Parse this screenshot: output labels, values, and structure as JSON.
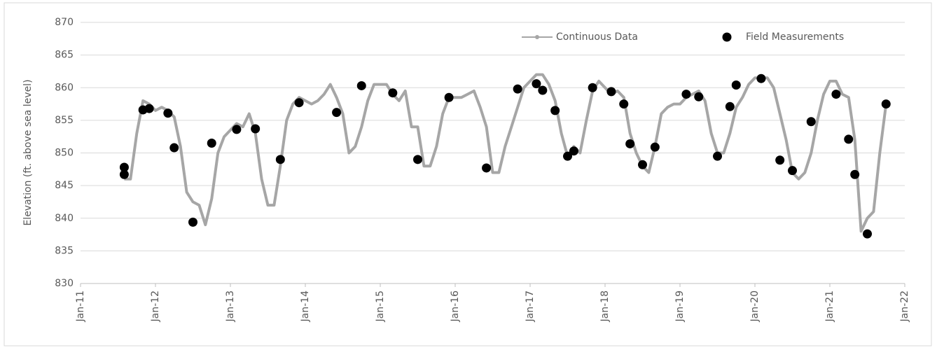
{
  "chart_data": {
    "type": "line",
    "y_label": "Elevation (ft. above sea level)",
    "ylim": [
      830,
      870
    ],
    "yticks": [
      830,
      835,
      840,
      845,
      850,
      855,
      860,
      865,
      870
    ],
    "xlim": [
      "2011-01",
      "2022-01"
    ],
    "xticks": [
      {
        "value": "2011-01",
        "label": "Jan-11"
      },
      {
        "value": "2012-01",
        "label": "Jan-12"
      },
      {
        "value": "2013-01",
        "label": "Jan-13"
      },
      {
        "value": "2014-01",
        "label": "Jan-14"
      },
      {
        "value": "2015-01",
        "label": "Jan-15"
      },
      {
        "value": "2016-01",
        "label": "Jan-16"
      },
      {
        "value": "2017-01",
        "label": "Jan-17"
      },
      {
        "value": "2018-01",
        "label": "Jan-18"
      },
      {
        "value": "2019-01",
        "label": "Jan-19"
      },
      {
        "value": "2020-01",
        "label": "Jan-20"
      },
      {
        "value": "2021-01",
        "label": "Jan-21"
      },
      {
        "value": "2022-01",
        "label": "Jan-22"
      }
    ],
    "grid": true,
    "legend": "top-right",
    "series": [
      {
        "name": "Continuous Data",
        "type": "line",
        "color": "#a6a6a6",
        "x": [
          "2011-08",
          "2011-09",
          "2011-10",
          "2011-11",
          "2011-12",
          "2012-01",
          "2012-02",
          "2012-03",
          "2012-04",
          "2012-05",
          "2012-06",
          "2012-07",
          "2012-08",
          "2012-09",
          "2012-10",
          "2012-11",
          "2012-12",
          "2013-01",
          "2013-02",
          "2013-03",
          "2013-04",
          "2013-05",
          "2013-06",
          "2013-07",
          "2013-08",
          "2013-09",
          "2013-10",
          "2013-11",
          "2013-12",
          "2014-01",
          "2014-02",
          "2014-03",
          "2014-04",
          "2014-05",
          "2014-06",
          "2014-07",
          "2014-08",
          "2014-09",
          "2014-10",
          "2014-11",
          "2014-12",
          "2015-01",
          "2015-02",
          "2015-03",
          "2015-04",
          "2015-05",
          "2015-06",
          "2015-07",
          "2015-08",
          "2015-09",
          "2015-10",
          "2015-11",
          "2015-12",
          "2016-01",
          "2016-02",
          "2016-03",
          "2016-04",
          "2016-05",
          "2016-06",
          "2016-07",
          "2016-08",
          "2016-09",
          "2016-10",
          "2016-11",
          "2016-12",
          "2017-01",
          "2017-02",
          "2017-03",
          "2017-04",
          "2017-05",
          "2017-06",
          "2017-07",
          "2017-08",
          "2017-09",
          "2017-10",
          "2017-11",
          "2017-12",
          "2018-01",
          "2018-02",
          "2018-03",
          "2018-04",
          "2018-05",
          "2018-06",
          "2018-07",
          "2018-08",
          "2018-09",
          "2018-10",
          "2018-11",
          "2018-12",
          "2019-01",
          "2019-02",
          "2019-03",
          "2019-04",
          "2019-05",
          "2019-06",
          "2019-07",
          "2019-08",
          "2019-09",
          "2019-10",
          "2019-11",
          "2019-12",
          "2020-01",
          "2020-02",
          "2020-03",
          "2020-04",
          "2020-05",
          "2020-06",
          "2020-07",
          "2020-08",
          "2020-09",
          "2020-10",
          "2020-11",
          "2020-12",
          "2021-01",
          "2021-02",
          "2021-03",
          "2021-04",
          "2021-05",
          "2021-06",
          "2021-07",
          "2021-08",
          "2021-09",
          "2021-10"
        ],
        "values": [
          846,
          846,
          853,
          858,
          857.5,
          856.5,
          857,
          856.5,
          855.5,
          851,
          844,
          842.5,
          842,
          839,
          843,
          850,
          852.5,
          853.5,
          854.5,
          854,
          856,
          853,
          846,
          842,
          842,
          848,
          855,
          857.5,
          858.5,
          858,
          857.5,
          858,
          859,
          860.5,
          858.5,
          856,
          850,
          851,
          854,
          858,
          860.5,
          860.5,
          860.5,
          859,
          858,
          859.5,
          854,
          854,
          848,
          848,
          851,
          856,
          858.5,
          858.5,
          858.5,
          859,
          859.5,
          857,
          854,
          847,
          847,
          851,
          854,
          857,
          860,
          861,
          862,
          862,
          860.5,
          858,
          853,
          849.5,
          851,
          850,
          855,
          859.5,
          861,
          860,
          859,
          859.5,
          858.5,
          853,
          850,
          848,
          847,
          851,
          856,
          857,
          857.5,
          857.5,
          858.5,
          859,
          859.5,
          858,
          853,
          850,
          850,
          853,
          857,
          858.5,
          860.5,
          861.5,
          861.5,
          861.5,
          860,
          856,
          852,
          847,
          846,
          847,
          850,
          855,
          859,
          861,
          861,
          859,
          858.5,
          852,
          838,
          840,
          841,
          850,
          857.5
        ]
      },
      {
        "name": "Field Measurements",
        "type": "scatter",
        "color": "#000000",
        "x": [
          "2011-08",
          "2011-08",
          "2011-11",
          "2011-12",
          "2012-03",
          "2012-04",
          "2012-07",
          "2012-10",
          "2013-02",
          "2013-05",
          "2013-09",
          "2013-12",
          "2014-06",
          "2014-10",
          "2015-03",
          "2015-07",
          "2015-12",
          "2016-06",
          "2016-11",
          "2017-02",
          "2017-03",
          "2017-05",
          "2017-07",
          "2017-08",
          "2017-11",
          "2018-02",
          "2018-04",
          "2018-05",
          "2018-07",
          "2018-09",
          "2019-02",
          "2019-04",
          "2019-07",
          "2019-09",
          "2019-10",
          "2020-02",
          "2020-05",
          "2020-07",
          "2020-10",
          "2021-02",
          "2021-04",
          "2021-05",
          "2021-07",
          "2021-10"
        ],
        "values": [
          847.8,
          846.7,
          856.6,
          856.8,
          856.1,
          850.8,
          839.4,
          851.5,
          853.6,
          853.7,
          849.0,
          857.7,
          856.2,
          860.3,
          859.2,
          849.0,
          858.5,
          847.7,
          859.8,
          860.6,
          859.6,
          856.5,
          849.5,
          850.3,
          860.0,
          859.4,
          857.5,
          851.4,
          848.2,
          850.9,
          859.0,
          858.6,
          849.5,
          857.1,
          860.4,
          861.4,
          848.9,
          847.3,
          854.8,
          859.0,
          852.1,
          846.7,
          837.6,
          857.5
        ]
      }
    ]
  }
}
